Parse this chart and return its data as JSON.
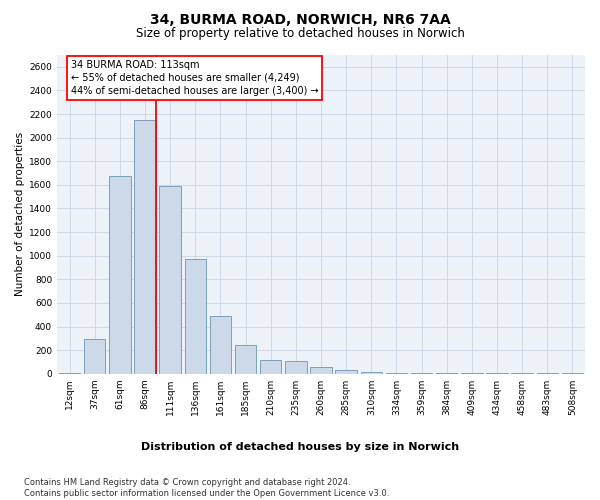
{
  "title_line1": "34, BURMA ROAD, NORWICH, NR6 7AA",
  "title_line2": "Size of property relative to detached houses in Norwich",
  "xlabel": "Distribution of detached houses by size in Norwich",
  "ylabel": "Number of detached properties",
  "categories": [
    "12sqm",
    "37sqm",
    "61sqm",
    "86sqm",
    "111sqm",
    "136sqm",
    "161sqm",
    "185sqm",
    "210sqm",
    "235sqm",
    "260sqm",
    "285sqm",
    "310sqm",
    "334sqm",
    "359sqm",
    "384sqm",
    "409sqm",
    "434sqm",
    "458sqm",
    "483sqm",
    "508sqm"
  ],
  "values": [
    10,
    295,
    1675,
    2150,
    1590,
    970,
    490,
    240,
    120,
    110,
    55,
    30,
    15,
    5,
    10,
    5,
    5,
    10,
    5,
    5,
    10
  ],
  "bar_color": "#ccd9e8",
  "bar_edge_color": "#7a9fbd",
  "red_line_after_index": 3,
  "red_line_label": "34 BURMA ROAD: 113sqm",
  "annotation_line1": "← 55% of detached houses are smaller (4,249)",
  "annotation_line2": "44% of semi-detached houses are larger (3,400) →",
  "ylim": [
    0,
    2700
  ],
  "yticks": [
    0,
    200,
    400,
    600,
    800,
    1000,
    1200,
    1400,
    1600,
    1800,
    2000,
    2200,
    2400,
    2600
  ],
  "grid_color": "#c8d4e4",
  "footer_line1": "Contains HM Land Registry data © Crown copyright and database right 2024.",
  "footer_line2": "Contains public sector information licensed under the Open Government Licence v3.0.",
  "background_color": "#edf2f8",
  "title1_fontsize": 10,
  "title2_fontsize": 8.5,
  "tick_fontsize": 6.5,
  "ylabel_fontsize": 7.5,
  "xlabel_fontsize": 8,
  "annotation_fontsize": 7,
  "footer_fontsize": 6
}
